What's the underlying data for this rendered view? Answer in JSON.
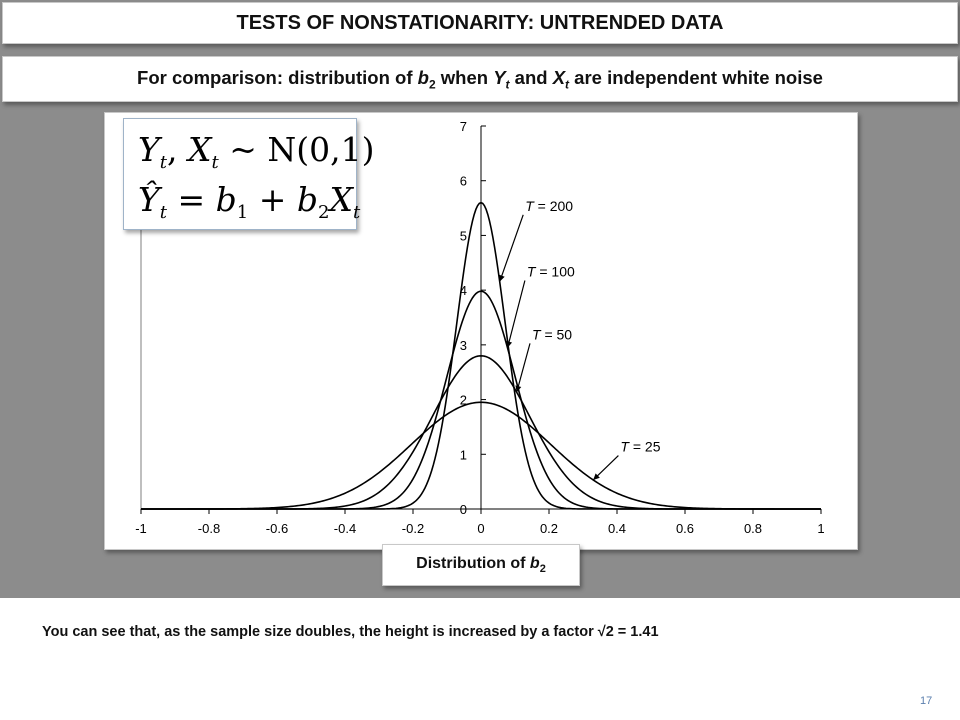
{
  "title": "TESTS OF NONSTATIONARITY: UNTRENDED DATA",
  "subtitle": {
    "prefix": "For comparison: distribution of ",
    "b": "b",
    "b_sub": "2",
    "when": " when ",
    "y": "Y",
    "y_sub": "t",
    "and": " and ",
    "x": "X",
    "x_sub": "t",
    "suffix": " are independent white noise"
  },
  "formula": {
    "line1": {
      "y": "Y",
      "t1": "t",
      "sep": ", ",
      "x": "X",
      "t2": "t",
      "rest": " ~ N(0,1)"
    },
    "line2": {
      "yhat": "Ŷ",
      "t1": "t",
      "eq": " = b",
      "one": "1",
      "plus": " + b",
      "two": "2",
      "x": "X",
      "t2": "t"
    }
  },
  "xlabel": {
    "text": "Distribution of ",
    "b": "b",
    "sub": "2"
  },
  "note": "You can see that, as the sample size doubles, the height is increased by a factor √2 = 1.41",
  "page_number": "17",
  "colors": {
    "curve": "#000000",
    "band": "#8c8c8c",
    "page_number": "#5b7fae"
  },
  "chart_data": {
    "type": "line",
    "xlim": [
      -1,
      1
    ],
    "ylim": [
      0,
      7
    ],
    "x_ticks": [
      "-1",
      "-0.8",
      "-0.6",
      "-0.4",
      "-0.2",
      "0",
      "0.2",
      "0.4",
      "0.6",
      "0.8",
      "1"
    ],
    "y_ticks": [
      "0",
      "1",
      "2",
      "3",
      "4",
      "5",
      "6",
      "7"
    ],
    "grid": false,
    "legend": "none",
    "series": [
      {
        "T": "200",
        "peak": 5.6,
        "sd": 0.0712
      },
      {
        "T": "100",
        "peak": 3.98,
        "sd": 0.1005
      },
      {
        "T": "50",
        "peak": 2.8,
        "sd": 0.1425
      },
      {
        "T": "25",
        "peak": 1.95,
        "sd": 0.2046
      }
    ],
    "annotations": [
      {
        "italic": "T",
        "text": " = 200",
        "series": "200"
      },
      {
        "italic": "T",
        "text": " = 100",
        "series": "100"
      },
      {
        "italic": "T",
        "text": " = 50",
        "series": "50"
      },
      {
        "italic": "T",
        "text": " = 25",
        "series": "25"
      }
    ]
  }
}
